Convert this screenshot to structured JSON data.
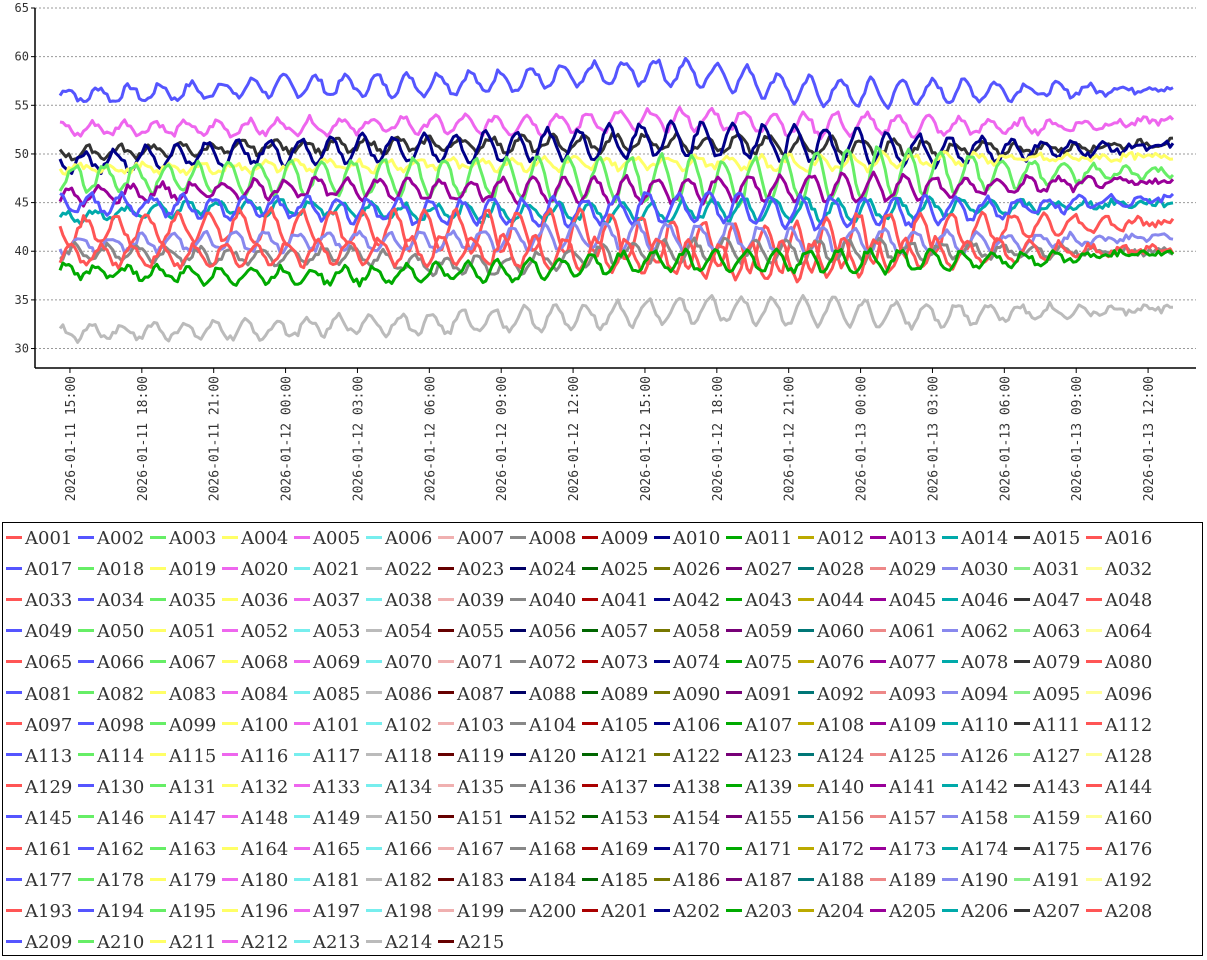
{
  "chart_data": {
    "type": "line",
    "title": "",
    "xlabel": "",
    "ylabel": "",
    "ylim": [
      28,
      65
    ],
    "grid": true,
    "legend_position": "bottom",
    "y_ticks": [
      30,
      35,
      40,
      45,
      50,
      55,
      60,
      65
    ],
    "x_range": [
      "2026-01-11 13:40",
      "2026-01-13 14:00"
    ],
    "x_ticks": [
      "2026-01-11  15:00",
      "2026-01-11  18:00",
      "2026-01-11  21:00",
      "2026-01-12  00:00",
      "2026-01-12  03:00",
      "2026-01-12  06:00",
      "2026-01-12  09:00",
      "2026-01-12  12:00",
      "2026-01-12  15:00",
      "2026-01-12  18:00",
      "2026-01-12  21:00",
      "2026-01-13  00:00",
      "2026-01-13  03:00",
      "2026-01-13  06:00",
      "2026-01-13  09:00",
      "2026-01-13  12:00"
    ],
    "palette": [
      "#ff5555",
      "#5555ff",
      "#66ee66",
      "#ffff66",
      "#ee66ee",
      "#77eeee",
      "#f0b0b0",
      "#888888",
      "#aa0000",
      "#000088",
      "#00aa00",
      "#bbaa00",
      "#990099",
      "#00aaaa",
      "#333333",
      "#ff5555",
      "#5555ff",
      "#66ee66",
      "#ffff66",
      "#ee66ee",
      "#77eeee",
      "#bbbbbb",
      "#660000",
      "#000066",
      "#006600",
      "#777700",
      "#770077",
      "#007777",
      "#ee8888",
      "#8888ee",
      "#88ee88",
      "#ffff99"
    ],
    "series": [
      {
        "name": "A002",
        "approx_values": [
          56.0,
          56.2,
          56.5,
          57.0,
          57.0,
          57.2,
          57.5,
          58.0,
          58.5,
          58.0,
          56.5,
          56.2,
          56.5,
          56.5,
          56.6,
          56.8
        ],
        "oscillation": 1.2
      },
      {
        "name": "A005",
        "approx_values": [
          52.5,
          52.7,
          52.6,
          52.8,
          52.9,
          53.0,
          53.0,
          53.2,
          53.5,
          53.5,
          53.0,
          53.0,
          52.8,
          52.8,
          53.0,
          53.5
        ],
        "oscillation": 1.0
      },
      {
        "name": "A015",
        "approx_values": [
          50.0,
          50.3,
          50.5,
          50.8,
          50.8,
          51.0,
          51.0,
          51.0,
          51.2,
          51.0,
          50.8,
          50.5,
          50.5,
          50.5,
          50.8,
          51.2
        ],
        "oscillation": 0.8
      },
      {
        "name": "A010",
        "approx_values": [
          49.0,
          49.5,
          50.0,
          50.2,
          50.5,
          50.5,
          50.7,
          51.0,
          51.5,
          51.5,
          51.0,
          50.5,
          50.3,
          50.5,
          50.5,
          50.8
        ],
        "oscillation": 1.6
      },
      {
        "name": "A004",
        "approx_values": [
          48.5,
          48.5,
          48.5,
          48.8,
          48.8,
          49.0,
          49.0,
          49.0,
          49.2,
          49.2,
          49.0,
          49.2,
          49.5,
          49.5,
          49.6,
          49.8
        ],
        "oscillation": 0.6
      },
      {
        "name": "A003",
        "approx_values": [
          47.5,
          47.5,
          47.5,
          47.5,
          47.5,
          47.5,
          47.5,
          47.5,
          47.5,
          47.0,
          47.5,
          48.0,
          48.0,
          48.0,
          48.0,
          48.2
        ],
        "oscillation": 2.2
      },
      {
        "name": "A013",
        "approx_values": [
          45.5,
          46.0,
          46.2,
          46.5,
          46.5,
          46.3,
          46.3,
          46.2,
          46.3,
          46.5,
          46.5,
          46.5,
          46.5,
          46.8,
          47.0,
          47.2
        ],
        "oscillation": 1.2
      },
      {
        "name": "A014",
        "approx_values": [
          43.5,
          44.0,
          44.5,
          44.5,
          44.2,
          44.0,
          44.0,
          44.0,
          44.0,
          44.2,
          44.2,
          44.2,
          44.5,
          44.5,
          44.8,
          45.0
        ],
        "oscillation": 0.9
      },
      {
        "name": "A017",
        "approx_values": [
          45.0,
          44.8,
          44.5,
          44.5,
          44.2,
          44.0,
          44.0,
          44.0,
          44.5,
          44.5,
          44.0,
          44.0,
          44.2,
          44.5,
          45.0,
          45.5
        ],
        "oscillation": 1.4
      },
      {
        "name": "A016",
        "approx_values": [
          42.0,
          42.3,
          42.5,
          42.5,
          42.3,
          42.2,
          42.0,
          42.0,
          41.0,
          40.5,
          40.5,
          41.5,
          42.0,
          42.5,
          42.8,
          43.0
        ],
        "oscillation": 2.2
      },
      {
        "name": "A030",
        "approx_values": [
          40.5,
          40.8,
          41.0,
          41.0,
          41.0,
          41.0,
          41.2,
          41.5,
          41.5,
          41.5,
          41.0,
          41.0,
          41.0,
          41.0,
          41.2,
          41.5
        ],
        "oscillation": 1.2
      },
      {
        "name": "A008",
        "approx_values": [
          40.0,
          39.8,
          39.5,
          39.5,
          39.5,
          38.5,
          38.5,
          39.5,
          40.0,
          40.0,
          40.0,
          40.0,
          40.0,
          40.0,
          40.0,
          40.0
        ],
        "oscillation": 1.0
      },
      {
        "name": "A001",
        "approx_values": [
          39.5,
          39.5,
          39.5,
          39.8,
          40.0,
          40.0,
          40.0,
          39.8,
          39.5,
          39.0,
          39.0,
          39.5,
          39.8,
          40.0,
          40.0,
          40.2
        ],
        "oscillation": 1.6
      },
      {
        "name": "A011",
        "approx_values": [
          38.0,
          37.8,
          37.5,
          37.5,
          37.5,
          37.8,
          38.0,
          38.5,
          39.0,
          39.0,
          39.0,
          39.0,
          39.0,
          39.2,
          39.5,
          39.8
        ],
        "oscillation": 1.0
      },
      {
        "name": "A214",
        "approx_values": [
          31.5,
          31.8,
          31.8,
          32.0,
          32.5,
          32.5,
          33.0,
          33.2,
          33.8,
          34.0,
          33.8,
          33.5,
          33.5,
          33.8,
          33.8,
          34.2
        ],
        "oscillation": 1.2
      }
    ]
  },
  "legend": {
    "items": [
      "A001",
      "A002",
      "A003",
      "A004",
      "A005",
      "A006",
      "A007",
      "A008",
      "A009",
      "A010",
      "A011",
      "A012",
      "A013",
      "A014",
      "A015",
      "A016",
      "A017",
      "A018",
      "A019",
      "A020",
      "A021",
      "A022",
      "A023",
      "A024",
      "A025",
      "A026",
      "A027",
      "A028",
      "A029",
      "A030",
      "A031",
      "A032",
      "A033",
      "A034",
      "A035",
      "A036",
      "A037",
      "A038",
      "A039",
      "A040",
      "A041",
      "A042",
      "A043",
      "A044",
      "A045",
      "A046",
      "A047",
      "A048",
      "A049",
      "A050",
      "A051",
      "A052",
      "A053",
      "A054",
      "A055",
      "A056",
      "A057",
      "A058",
      "A059",
      "A060",
      "A061",
      "A062",
      "A063",
      "A064",
      "A065",
      "A066",
      "A067",
      "A068",
      "A069",
      "A070",
      "A071",
      "A072",
      "A073",
      "A074",
      "A075",
      "A076",
      "A077",
      "A078",
      "A079",
      "A080",
      "A081",
      "A082",
      "A083",
      "A084",
      "A085",
      "A086",
      "A087",
      "A088",
      "A089",
      "A090",
      "A091",
      "A092",
      "A093",
      "A094",
      "A095",
      "A096",
      "A097",
      "A098",
      "A099",
      "A100",
      "A101",
      "A102",
      "A103",
      "A104",
      "A105",
      "A106",
      "A107",
      "A108",
      "A109",
      "A110",
      "A111",
      "A112",
      "A113",
      "A114",
      "A115",
      "A116",
      "A117",
      "A118",
      "A119",
      "A120",
      "A121",
      "A122",
      "A123",
      "A124",
      "A125",
      "A126",
      "A127",
      "A128",
      "A129",
      "A130",
      "A131",
      "A132",
      "A133",
      "A134",
      "A135",
      "A136",
      "A137",
      "A138",
      "A139",
      "A140",
      "A141",
      "A142",
      "A143",
      "A144",
      "A145",
      "A146",
      "A147",
      "A148",
      "A149",
      "A150",
      "A151",
      "A152",
      "A153",
      "A154",
      "A155",
      "A156",
      "A157",
      "A158",
      "A159",
      "A160",
      "A161",
      "A162",
      "A163",
      "A164",
      "A165",
      "A166",
      "A167",
      "A168",
      "A169",
      "A170",
      "A171",
      "A172",
      "A173",
      "A174",
      "A175",
      "A176",
      "A177",
      "A178",
      "A179",
      "A180",
      "A181",
      "A182",
      "A183",
      "A184",
      "A185",
      "A186",
      "A187",
      "A188",
      "A189",
      "A190",
      "A191",
      "A192",
      "A193",
      "A194",
      "A195",
      "A196",
      "A197",
      "A198",
      "A199",
      "A200",
      "A201",
      "A202",
      "A203",
      "A204",
      "A205",
      "A206",
      "A207",
      "A208",
      "A209",
      "A210",
      "A211",
      "A212",
      "A213",
      "A214",
      "A215"
    ]
  }
}
